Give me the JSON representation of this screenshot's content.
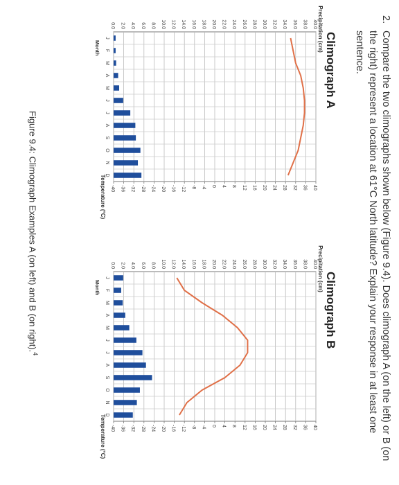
{
  "question": {
    "number": "2.",
    "text": "Compare the two climographs shown below (Figure 9.4). Does climograph A (on the left) or B (on the right) represent a location at 61°C North latitude? Explain your response in at least one sentence."
  },
  "cursor_glyph": "I",
  "caption": {
    "text": "Figure 9.4: Climograph Examples A (on left) and B (on right).",
    "sup": "4"
  },
  "chart_data": [
    {
      "type": "bar",
      "title": "Climograph A",
      "xlabel": "Month",
      "ylabel": "Precipitation (cm)",
      "y2label": "Temperature (°C)",
      "categories": [
        "J",
        "F",
        "M",
        "A",
        "M",
        "J",
        "J",
        "A",
        "S",
        "O",
        "N",
        "D"
      ],
      "ylim": [
        0,
        40
      ],
      "y2lim": [
        -40,
        40
      ],
      "yticks": [
        "0.0",
        "2.0",
        "4.0",
        "6.0",
        "8.0",
        "10.0",
        "12.0",
        "14.0",
        "16.0",
        "18.0",
        "20.0",
        "22.0",
        "24.0",
        "26.0",
        "28.0",
        "30.0",
        "32.0",
        "34.0",
        "36.0",
        "38.0",
        "40.0"
      ],
      "y2ticks": [
        "-40",
        "-36",
        "-32",
        "-28",
        "-24",
        "-20",
        "-16",
        "-12",
        "-8",
        "-4",
        "0",
        "4",
        "8",
        "12",
        "16",
        "20",
        "24",
        "28",
        "32",
        "36",
        "40"
      ],
      "series": [
        {
          "kind": "bar",
          "color": "#1f4e9c",
          "values": [
            0.4,
            0.4,
            0.5,
            0.9,
            1.1,
            1.9,
            3.3,
            4.3,
            4.4,
            5.3,
            4.8,
            5.5
          ]
        },
        {
          "kind": "line",
          "color": "#e07048",
          "values": [
            30,
            31,
            32,
            34,
            35,
            35.5,
            35.5,
            35,
            34,
            33,
            31,
            29
          ]
        }
      ]
    },
    {
      "type": "bar",
      "title": "Climograph B",
      "xlabel": "Month",
      "ylabel": "Precipitation (cm)",
      "y2label": "Temperature (°C)",
      "categories": [
        "J",
        "F",
        "M",
        "A",
        "M",
        "J",
        "J",
        "A",
        "S",
        "O",
        "N",
        "D"
      ],
      "ylim": [
        0,
        40
      ],
      "y2lim": [
        -40,
        40
      ],
      "yticks": [
        "0.0",
        "2.0",
        "4.0",
        "6.0",
        "8.0",
        "10.0",
        "12.0",
        "14.0",
        "16.0",
        "18.0",
        "20.0",
        "22.0",
        "24.0",
        "26.0",
        "28.0",
        "30.0",
        "32.0",
        "34.0",
        "36.0",
        "38.0",
        "40.0"
      ],
      "y2ticks": [
        "-40",
        "-36",
        "-32",
        "-28",
        "-24",
        "-20",
        "-16",
        "-12",
        "-8",
        "-4",
        "0",
        "4",
        "8",
        "12",
        "16",
        "20",
        "24",
        "28",
        "32",
        "36",
        "40"
      ],
      "series": [
        {
          "kind": "bar",
          "color": "#1f4e9c",
          "values": [
            1.9,
            1.5,
            1.8,
            2.3,
            3.1,
            4.5,
            5.7,
            6.4,
            7.6,
            5.2,
            4.6,
            3.8
          ]
        },
        {
          "kind": "line",
          "color": "#e07048",
          "values": [
            -15,
            -12,
            -5,
            3,
            9,
            13,
            13,
            10,
            4,
            -5,
            -11,
            -14
          ]
        }
      ]
    }
  ]
}
